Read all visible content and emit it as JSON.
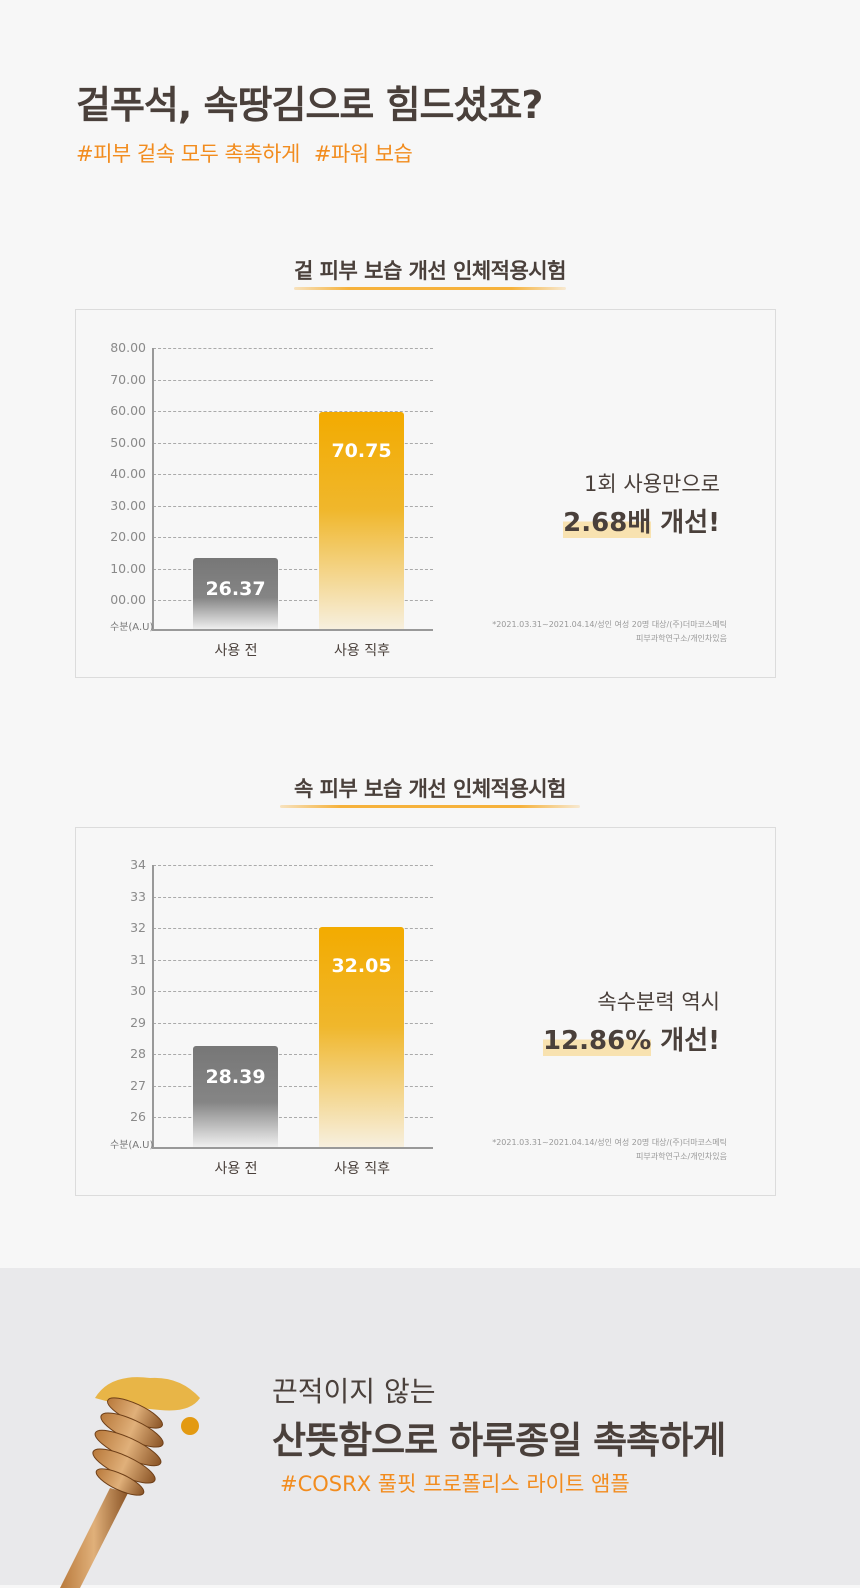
{
  "header": {
    "title": "겉푸석, 속땅김으로 힘드셨죠?",
    "tags": [
      "#피부 겉속 모두 촉촉하게",
      "#파워 보습"
    ]
  },
  "colors": {
    "accent": "#f28c1e",
    "bar_before": "#7a7a7a",
    "bar_after": "#f3ab00",
    "text": "#4a403b"
  },
  "chart_data": [
    {
      "type": "bar",
      "title": "겉 피부 보습 개선 인체적용시험",
      "ylabel": "수분(A.U)",
      "yticks": [
        "80.00",
        "70.00",
        "60.00",
        "50.00",
        "40.00",
        "30.00",
        "20.00",
        "10.00",
        "00.00"
      ],
      "ylim": [
        0,
        80
      ],
      "categories": [
        "사용 전",
        "사용 직후"
      ],
      "values": [
        26.37,
        70.75
      ],
      "value_labels": [
        "26.37",
        "70.75"
      ],
      "grid": true,
      "callout": {
        "line1": "1회 사용만으로",
        "line2_highlight": "2.68배",
        "line2_rest": " 개선!"
      },
      "note": [
        "*2021.03.31~2021.04.14/성인 여성 20명 대상/(주)더마코스메틱",
        "피부과학연구소/개인차있음"
      ]
    },
    {
      "type": "bar",
      "title": "속 피부 보습 개선 인체적용시험",
      "ylabel": "수분(A.U)",
      "yticks": [
        "34",
        "33",
        "32",
        "31",
        "30",
        "29",
        "28",
        "27",
        "26"
      ],
      "ylim": [
        26,
        34
      ],
      "categories": [
        "사용 전",
        "사용 직후"
      ],
      "values": [
        28.39,
        32.05
      ],
      "value_labels": [
        "28.39",
        "32.05"
      ],
      "grid": true,
      "callout": {
        "line1": "속수분력 역시",
        "line2_highlight": "12.86%",
        "line2_rest": " 개선!"
      },
      "note": [
        "*2021.03.31~2021.04.14/성인 여성 20명 대상/(주)더마코스메틱",
        "피부과학연구소/개인차있음"
      ]
    }
  ],
  "footer": {
    "line1": "끈적이지 않는",
    "line2": "산뜻함으로 하루종일 촉촉하게",
    "tag": "#COSRX 풀핏 프로폴리스 라이트 앰플"
  }
}
